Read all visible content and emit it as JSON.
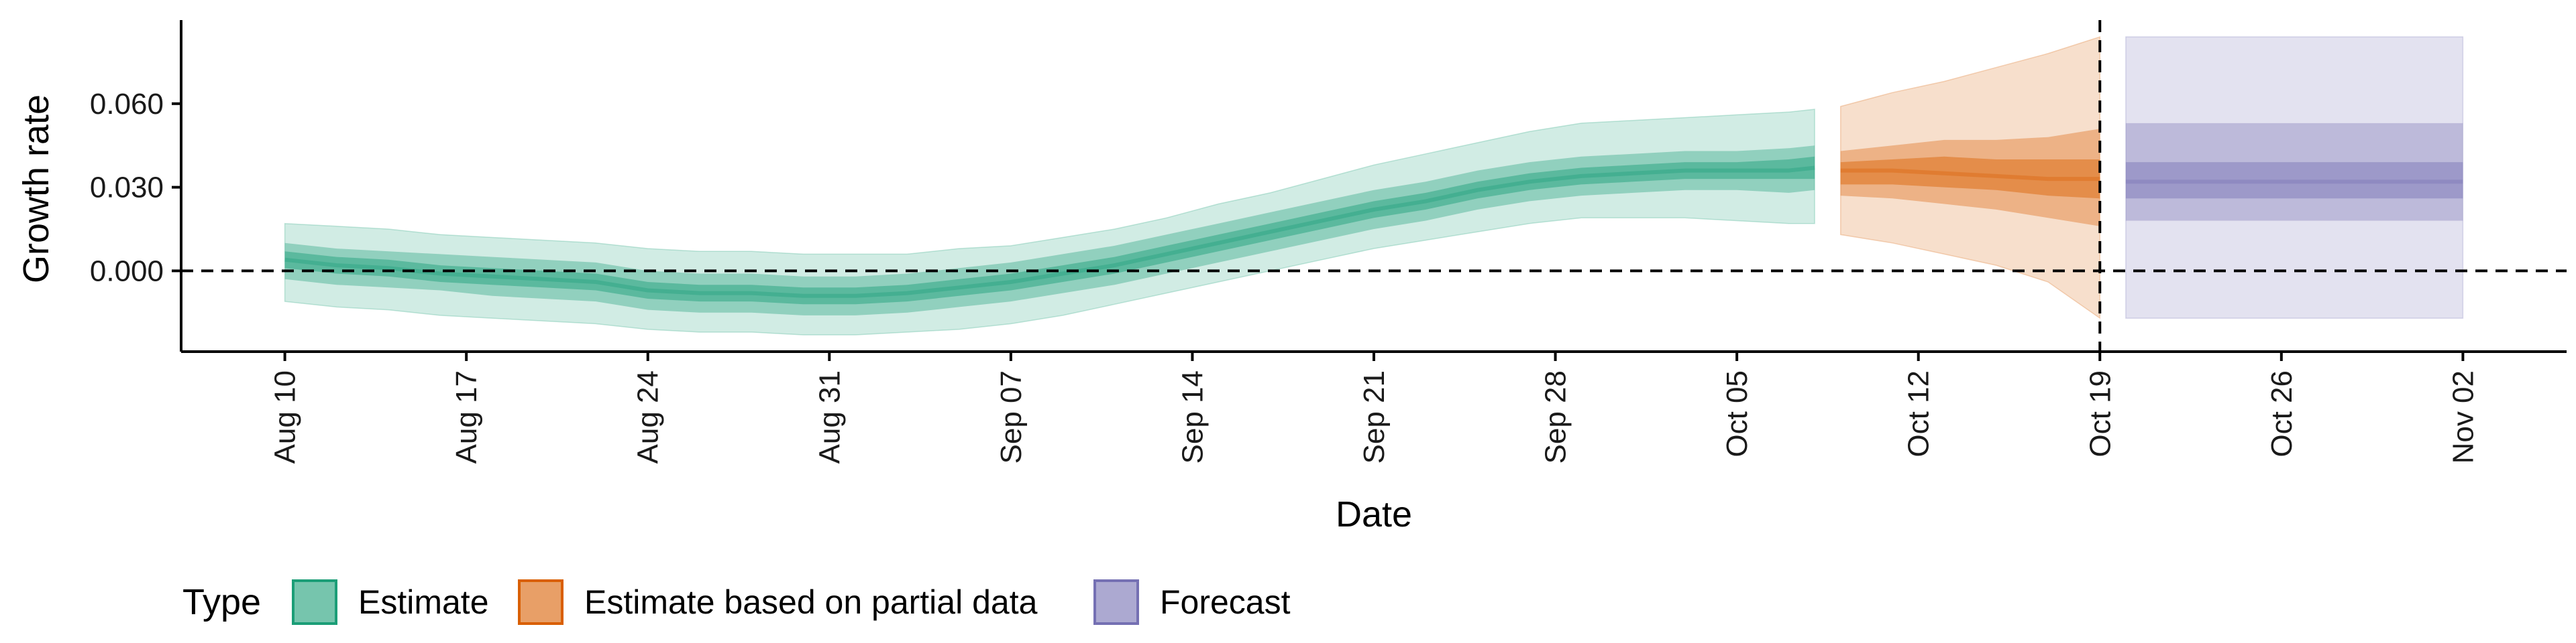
{
  "chart_data": {
    "type": "area",
    "xlabel": "Date",
    "ylabel": "Growth rate",
    "x_ticks": [
      "Aug 10",
      "Aug 17",
      "Aug 24",
      "Aug 31",
      "Sep 07",
      "Sep 14",
      "Sep 21",
      "Sep 28",
      "Oct 05",
      "Oct 12",
      "Oct 19",
      "Oct 26",
      "Nov 02"
    ],
    "y_ticks": [
      "0.000",
      "0.030",
      "0.060"
    ],
    "y_tick_values": [
      0.0,
      0.03,
      0.06
    ],
    "ylim": [
      -0.029,
      0.09
    ],
    "xlim": [
      "2020-08-06",
      "2020-11-06"
    ],
    "reference_lines": [
      {
        "orientation": "horizontal",
        "value": 0.0,
        "style": "dashed"
      },
      {
        "orientation": "vertical",
        "value": "2020-10-19",
        "style": "dashed"
      }
    ],
    "legend": {
      "title": "Type",
      "position": "bottom-left",
      "entries": [
        {
          "label": "Estimate",
          "color": "#1b9e77"
        },
        {
          "label": "Estimate based on partial data",
          "color": "#d95f02"
        },
        {
          "label": "Forecast",
          "color": "#7570b3"
        }
      ]
    },
    "series": [
      {
        "name": "Estimate",
        "fill_color": "#1b9e77",
        "points": [
          {
            "date": "2020-08-10",
            "median": 0.004,
            "inner": [
              0.001,
              0.007
            ],
            "mid": [
              -0.003,
              0.01
            ],
            "outer": [
              -0.011,
              0.017
            ]
          },
          {
            "date": "2020-08-12",
            "median": 0.002,
            "inner": [
              -0.001,
              0.005
            ],
            "mid": [
              -0.005,
              0.008
            ],
            "outer": [
              -0.013,
              0.016
            ]
          },
          {
            "date": "2020-08-14",
            "median": 0.001,
            "inner": [
              -0.002,
              0.004
            ],
            "mid": [
              -0.006,
              0.007
            ],
            "outer": [
              -0.014,
              0.015
            ]
          },
          {
            "date": "2020-08-16",
            "median": -0.001,
            "inner": [
              -0.004,
              0.002
            ],
            "mid": [
              -0.007,
              0.006
            ],
            "outer": [
              -0.016,
              0.013
            ]
          },
          {
            "date": "2020-08-18",
            "median": -0.002,
            "inner": [
              -0.005,
              0.001
            ],
            "mid": [
              -0.009,
              0.005
            ],
            "outer": [
              -0.017,
              0.012
            ]
          },
          {
            "date": "2020-08-20",
            "median": -0.003,
            "inner": [
              -0.006,
              0.0
            ],
            "mid": [
              -0.01,
              0.004
            ],
            "outer": [
              -0.018,
              0.011
            ]
          },
          {
            "date": "2020-08-22",
            "median": -0.004,
            "inner": [
              -0.007,
              -0.001
            ],
            "mid": [
              -0.011,
              0.003
            ],
            "outer": [
              -0.019,
              0.01
            ]
          },
          {
            "date": "2020-08-24",
            "median": -0.007,
            "inner": [
              -0.01,
              -0.004
            ],
            "mid": [
              -0.014,
              0.0
            ],
            "outer": [
              -0.021,
              0.008
            ]
          },
          {
            "date": "2020-08-26",
            "median": -0.008,
            "inner": [
              -0.011,
              -0.005
            ],
            "mid": [
              -0.015,
              -0.001
            ],
            "outer": [
              -0.022,
              0.007
            ]
          },
          {
            "date": "2020-08-28",
            "median": -0.008,
            "inner": [
              -0.011,
              -0.005
            ],
            "mid": [
              -0.015,
              -0.001
            ],
            "outer": [
              -0.022,
              0.007
            ]
          },
          {
            "date": "2020-08-30",
            "median": -0.009,
            "inner": [
              -0.012,
              -0.006
            ],
            "mid": [
              -0.016,
              -0.002
            ],
            "outer": [
              -0.023,
              0.006
            ]
          },
          {
            "date": "2020-09-01",
            "median": -0.009,
            "inner": [
              -0.012,
              -0.006
            ],
            "mid": [
              -0.016,
              -0.002
            ],
            "outer": [
              -0.023,
              0.006
            ]
          },
          {
            "date": "2020-09-03",
            "median": -0.008,
            "inner": [
              -0.011,
              -0.005
            ],
            "mid": [
              -0.015,
              -0.001
            ],
            "outer": [
              -0.022,
              0.006
            ]
          },
          {
            "date": "2020-09-05",
            "median": -0.006,
            "inner": [
              -0.009,
              -0.003
            ],
            "mid": [
              -0.013,
              0.001
            ],
            "outer": [
              -0.021,
              0.008
            ]
          },
          {
            "date": "2020-09-07",
            "median": -0.004,
            "inner": [
              -0.007,
              -0.001
            ],
            "mid": [
              -0.011,
              0.003
            ],
            "outer": [
              -0.019,
              0.009
            ]
          },
          {
            "date": "2020-09-09",
            "median": -0.001,
            "inner": [
              -0.004,
              0.002
            ],
            "mid": [
              -0.008,
              0.006
            ],
            "outer": [
              -0.016,
              0.012
            ]
          },
          {
            "date": "2020-09-11",
            "median": 0.002,
            "inner": [
              -0.001,
              0.005
            ],
            "mid": [
              -0.005,
              0.009
            ],
            "outer": [
              -0.012,
              0.015
            ]
          },
          {
            "date": "2020-09-13",
            "median": 0.006,
            "inner": [
              0.003,
              0.009
            ],
            "mid": [
              -0.001,
              0.013
            ],
            "outer": [
              -0.008,
              0.019
            ]
          },
          {
            "date": "2020-09-15",
            "median": 0.01,
            "inner": [
              0.007,
              0.013
            ],
            "mid": [
              0.003,
              0.017
            ],
            "outer": [
              -0.004,
              0.024
            ]
          },
          {
            "date": "2020-09-17",
            "median": 0.014,
            "inner": [
              0.011,
              0.017
            ],
            "mid": [
              0.007,
              0.021
            ],
            "outer": [
              0.0,
              0.028
            ]
          },
          {
            "date": "2020-09-19",
            "median": 0.018,
            "inner": [
              0.015,
              0.021
            ],
            "mid": [
              0.011,
              0.025
            ],
            "outer": [
              0.004,
              0.033
            ]
          },
          {
            "date": "2020-09-21",
            "median": 0.022,
            "inner": [
              0.019,
              0.025
            ],
            "mid": [
              0.015,
              0.029
            ],
            "outer": [
              0.008,
              0.038
            ]
          },
          {
            "date": "2020-09-23",
            "median": 0.025,
            "inner": [
              0.022,
              0.028
            ],
            "mid": [
              0.018,
              0.032
            ],
            "outer": [
              0.011,
              0.042
            ]
          },
          {
            "date": "2020-09-25",
            "median": 0.029,
            "inner": [
              0.026,
              0.032
            ],
            "mid": [
              0.022,
              0.036
            ],
            "outer": [
              0.014,
              0.046
            ]
          },
          {
            "date": "2020-09-27",
            "median": 0.032,
            "inner": [
              0.029,
              0.035
            ],
            "mid": [
              0.025,
              0.039
            ],
            "outer": [
              0.017,
              0.05
            ]
          },
          {
            "date": "2020-09-29",
            "median": 0.034,
            "inner": [
              0.031,
              0.037
            ],
            "mid": [
              0.027,
              0.041
            ],
            "outer": [
              0.019,
              0.053
            ]
          },
          {
            "date": "2020-10-01",
            "median": 0.035,
            "inner": [
              0.032,
              0.038
            ],
            "mid": [
              0.028,
              0.042
            ],
            "outer": [
              0.019,
              0.054
            ]
          },
          {
            "date": "2020-10-03",
            "median": 0.036,
            "inner": [
              0.033,
              0.039
            ],
            "mid": [
              0.029,
              0.043
            ],
            "outer": [
              0.019,
              0.055
            ]
          },
          {
            "date": "2020-10-05",
            "median": 0.036,
            "inner": [
              0.033,
              0.039
            ],
            "mid": [
              0.029,
              0.043
            ],
            "outer": [
              0.018,
              0.056
            ]
          },
          {
            "date": "2020-10-07",
            "median": 0.036,
            "inner": [
              0.033,
              0.04
            ],
            "mid": [
              0.028,
              0.044
            ],
            "outer": [
              0.017,
              0.057
            ]
          },
          {
            "date": "2020-10-08",
            "median": 0.037,
            "inner": [
              0.033,
              0.041
            ],
            "mid": [
              0.029,
              0.045
            ],
            "outer": [
              0.017,
              0.058
            ]
          }
        ]
      },
      {
        "name": "Estimate based on partial data",
        "fill_color": "#d95f02",
        "points": [
          {
            "date": "2020-10-09",
            "median": 0.036,
            "inner": [
              0.031,
              0.039
            ],
            "mid": [
              0.027,
              0.043
            ],
            "outer": [
              0.013,
              0.059
            ]
          },
          {
            "date": "2020-10-11",
            "median": 0.036,
            "inner": [
              0.031,
              0.04
            ],
            "mid": [
              0.026,
              0.045
            ],
            "outer": [
              0.01,
              0.064
            ]
          },
          {
            "date": "2020-10-13",
            "median": 0.035,
            "inner": [
              0.03,
              0.041
            ],
            "mid": [
              0.024,
              0.047
            ],
            "outer": [
              0.006,
              0.068
            ]
          },
          {
            "date": "2020-10-15",
            "median": 0.034,
            "inner": [
              0.029,
              0.04
            ],
            "mid": [
              0.022,
              0.047
            ],
            "outer": [
              0.002,
              0.073
            ]
          },
          {
            "date": "2020-10-17",
            "median": 0.033,
            "inner": [
              0.027,
              0.04
            ],
            "mid": [
              0.019,
              0.048
            ],
            "outer": [
              -0.004,
              0.078
            ]
          },
          {
            "date": "2020-10-19",
            "median": 0.033,
            "inner": [
              0.026,
              0.04
            ],
            "mid": [
              0.016,
              0.051
            ],
            "outer": [
              -0.017,
              0.084
            ]
          }
        ]
      },
      {
        "name": "Forecast",
        "fill_color": "#7570b3",
        "points": [
          {
            "date": "2020-10-20",
            "median": 0.032,
            "inner": [
              0.026,
              0.039
            ],
            "mid": [
              0.018,
              0.053
            ],
            "outer": [
              -0.017,
              0.084
            ]
          },
          {
            "date": "2020-11-02",
            "median": 0.032,
            "inner": [
              0.026,
              0.039
            ],
            "mid": [
              0.018,
              0.053
            ],
            "outer": [
              -0.017,
              0.084
            ]
          }
        ]
      }
    ]
  }
}
